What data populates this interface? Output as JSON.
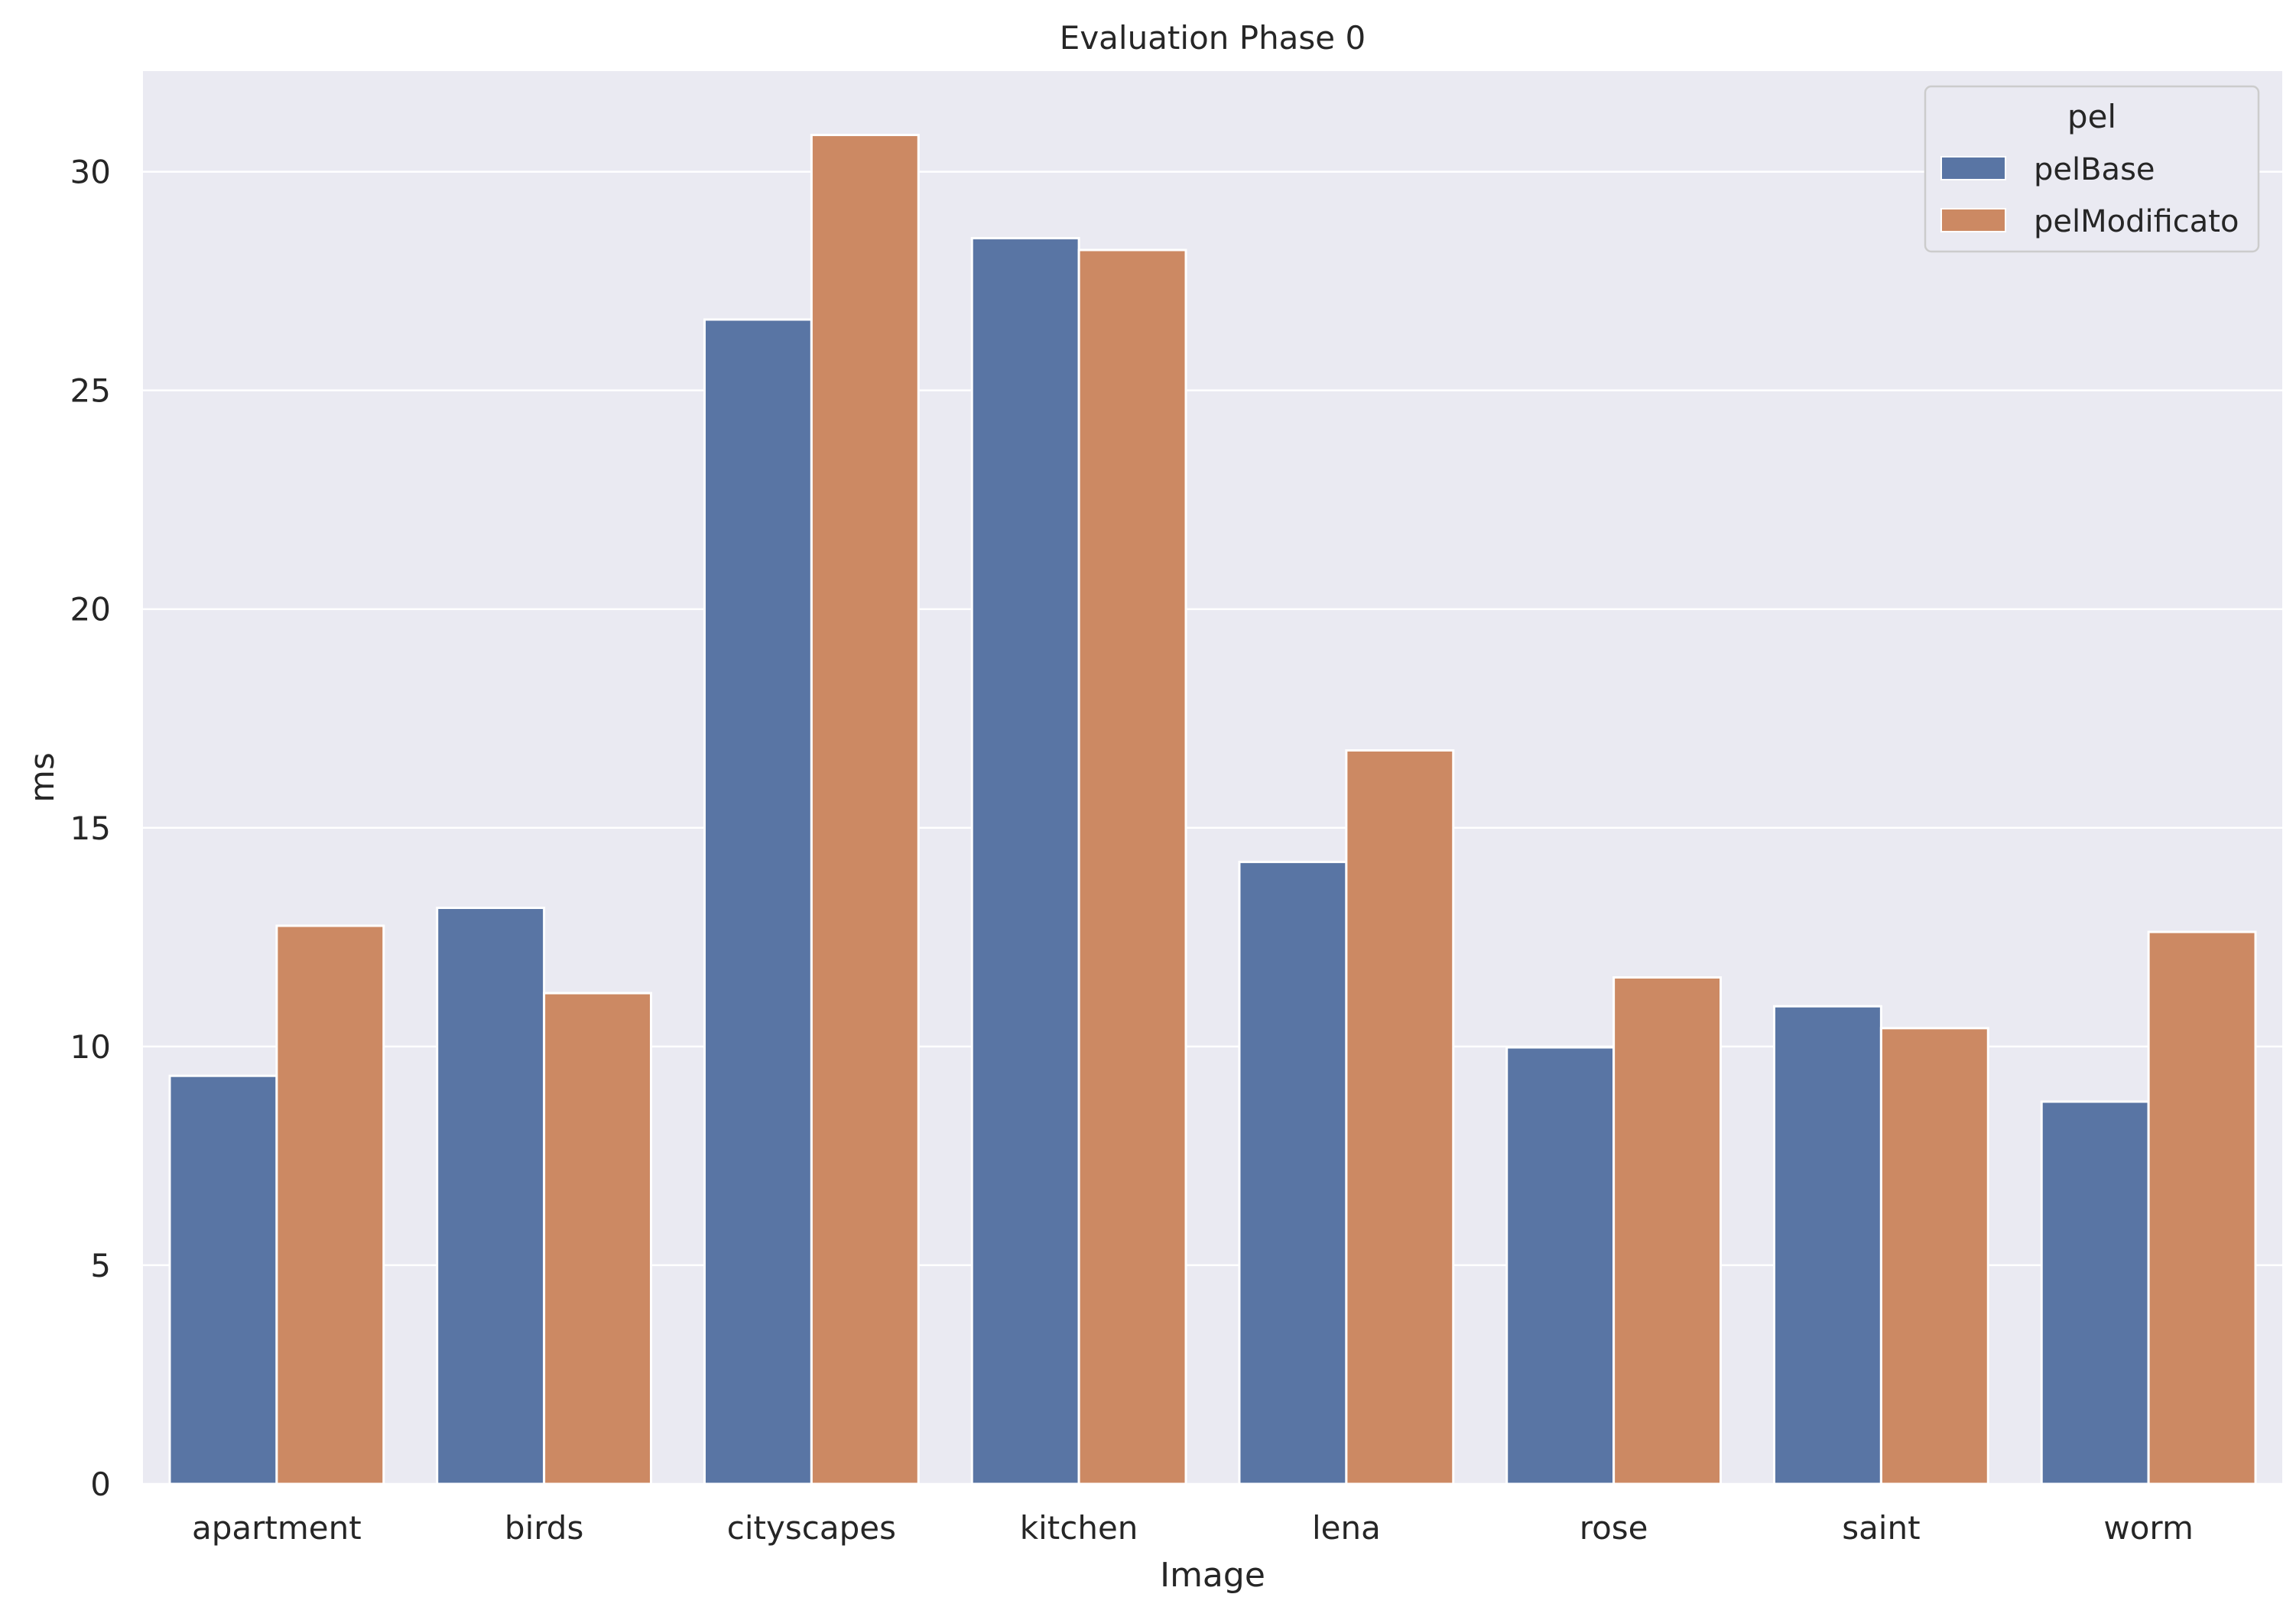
{
  "chart_data": {
    "type": "bar",
    "title": "Evaluation Phase 0",
    "xlabel": "Image",
    "ylabel": "ms",
    "categories": [
      "apartment",
      "birds",
      "cityscapes",
      "kitchen",
      "lena",
      "rose",
      "saint",
      "worm"
    ],
    "series": [
      {
        "name": "pelBase",
        "color": "#5975a4",
        "values": [
          9.33,
          13.17,
          26.62,
          28.48,
          14.22,
          9.98,
          10.92,
          8.74
        ]
      },
      {
        "name": "pelModificato",
        "color": "#cc8963",
        "values": [
          12.76,
          11.22,
          30.84,
          28.21,
          16.77,
          11.58,
          10.42,
          12.62
        ]
      }
    ],
    "ylim": [
      0,
      32.3
    ],
    "yticks": [
      0,
      5,
      10,
      15,
      20,
      25,
      30
    ],
    "grid": true,
    "legend": {
      "title": "pel",
      "placement": "top-right"
    },
    "colors": {
      "plot_background": "#eaeaf2",
      "grid": "#ffffff",
      "text": "#262626"
    }
  }
}
